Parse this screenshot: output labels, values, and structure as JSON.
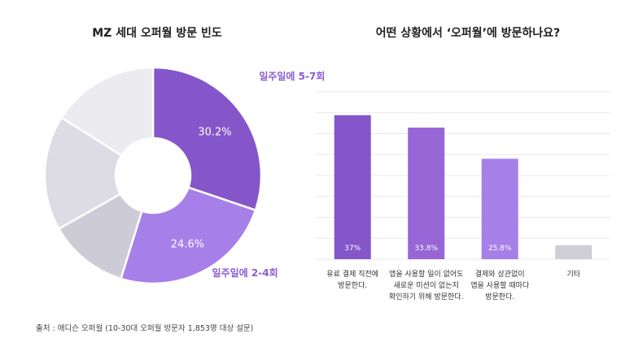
{
  "chart_data": [
    {
      "type": "pie",
      "title": "MZ 세대 오퍼월 방문 빈도",
      "slices": [
        {
          "label": "일주일에 5-7회",
          "value": 30.2,
          "value_label": "30.2%",
          "show_callout": true,
          "color": "#8556c9"
        },
        {
          "label": "일주일에 2-4회",
          "value": 24.6,
          "value_label": "24.6%",
          "show_callout": true,
          "color": "#a77fe8"
        },
        {
          "label": "",
          "value": 12.0,
          "value_label": "",
          "show_callout": false,
          "color": "#cdcbd6"
        },
        {
          "label": "",
          "value": 17.2,
          "value_label": "",
          "show_callout": false,
          "color": "#dddce4"
        },
        {
          "label": "",
          "value": 16.0,
          "value_label": "",
          "show_callout": false,
          "color": "#ececf0"
        }
      ]
    },
    {
      "type": "bar",
      "title": "어떤 상황에서 ‘오퍼월’에 방문하나요?",
      "categories": [
        [
          "유료 결제 직전에",
          "방문한다."
        ],
        [
          "앱을 사용할 일이 없어도",
          "새로운 미션이 없는지",
          "확인하기 위해 방문한다."
        ],
        [
          "결제와 상관없이",
          "앱을 사용할 때마다",
          "방문한다."
        ],
        [
          "기타"
        ]
      ],
      "values": [
        37,
        33.8,
        25.8,
        3.6
      ],
      "value_labels": [
        "37%",
        "33.8%",
        "25.8%",
        ""
      ],
      "colors": [
        "#8556c9",
        "#9765d6",
        "#a77fe8",
        "#cfcdd6"
      ],
      "ylim": [
        0,
        43
      ],
      "grid": true
    }
  ],
  "footnote": "출처 : 애디슨 오퍼월 (10-30대 오퍼월 방문자 1,853명 대상 설문)"
}
